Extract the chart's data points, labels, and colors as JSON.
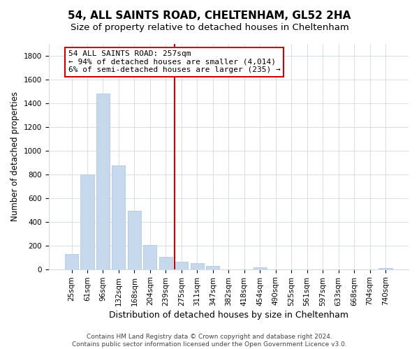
{
  "title": "54, ALL SAINTS ROAD, CHELTENHAM, GL52 2HA",
  "subtitle": "Size of property relative to detached houses in Cheltenham",
  "xlabel": "Distribution of detached houses by size in Cheltenham",
  "ylabel": "Number of detached properties",
  "categories": [
    "25sqm",
    "61sqm",
    "96sqm",
    "132sqm",
    "168sqm",
    "204sqm",
    "239sqm",
    "275sqm",
    "311sqm",
    "347sqm",
    "382sqm",
    "418sqm",
    "454sqm",
    "490sqm",
    "525sqm",
    "561sqm",
    "597sqm",
    "633sqm",
    "668sqm",
    "704sqm",
    "740sqm"
  ],
  "values": [
    130,
    800,
    1480,
    875,
    495,
    205,
    105,
    65,
    50,
    28,
    0,
    0,
    15,
    0,
    0,
    0,
    0,
    0,
    0,
    0,
    10
  ],
  "bar_color": "#c6d9ec",
  "bar_edge_color": "#aac4dc",
  "vline_x": 6.57,
  "vline_color": "#cc0000",
  "ylim": [
    0,
    1900
  ],
  "yticks": [
    0,
    200,
    400,
    600,
    800,
    1000,
    1200,
    1400,
    1600,
    1800
  ],
  "annotation_title": "54 ALL SAINTS ROAD: 257sqm",
  "annotation_line1": "← 94% of detached houses are smaller (4,014)",
  "annotation_line2": "6% of semi-detached houses are larger (235) →",
  "footer1": "Contains HM Land Registry data © Crown copyright and database right 2024.",
  "footer2": "Contains public sector information licensed under the Open Government Licence v3.0.",
  "title_fontsize": 11,
  "subtitle_fontsize": 9.5,
  "xlabel_fontsize": 9,
  "ylabel_fontsize": 8.5,
  "tick_fontsize": 7.5,
  "annotation_fontsize": 8,
  "footer_fontsize": 6.5,
  "background_color": "#ffffff",
  "grid_color": "#d0dae4"
}
